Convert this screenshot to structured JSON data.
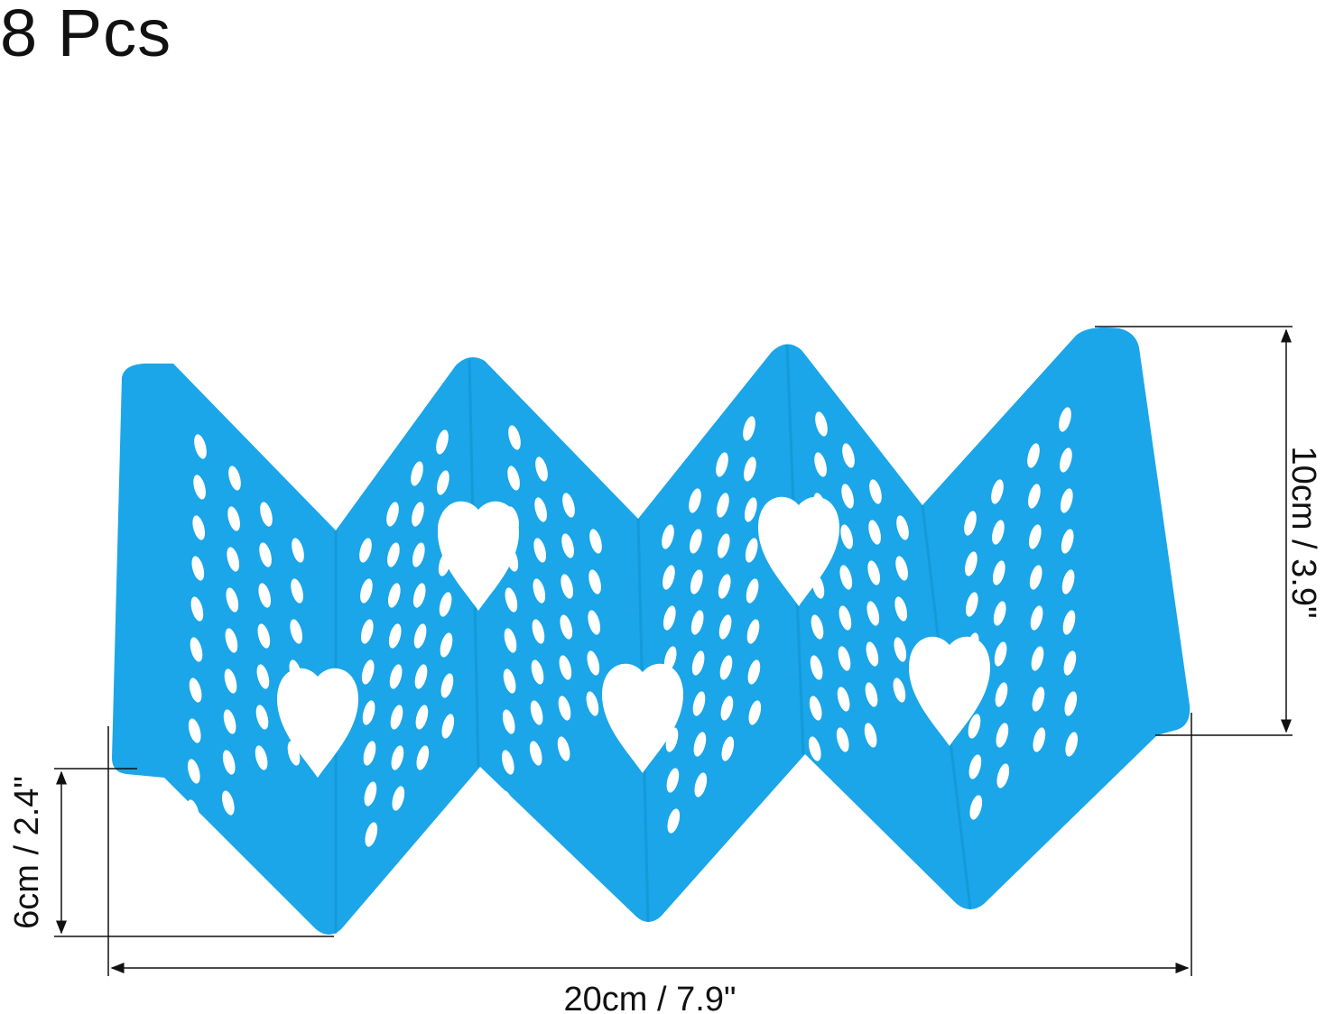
{
  "title": "8 Pcs",
  "product": {
    "icon": "taco-holder-rack",
    "color": "#1aa6e8",
    "hole_color": "#ffffff"
  },
  "dimensions": {
    "height": "10cm / 3.9\"",
    "depth": "6cm / 2.4\"",
    "width": "20cm / 7.9\""
  }
}
